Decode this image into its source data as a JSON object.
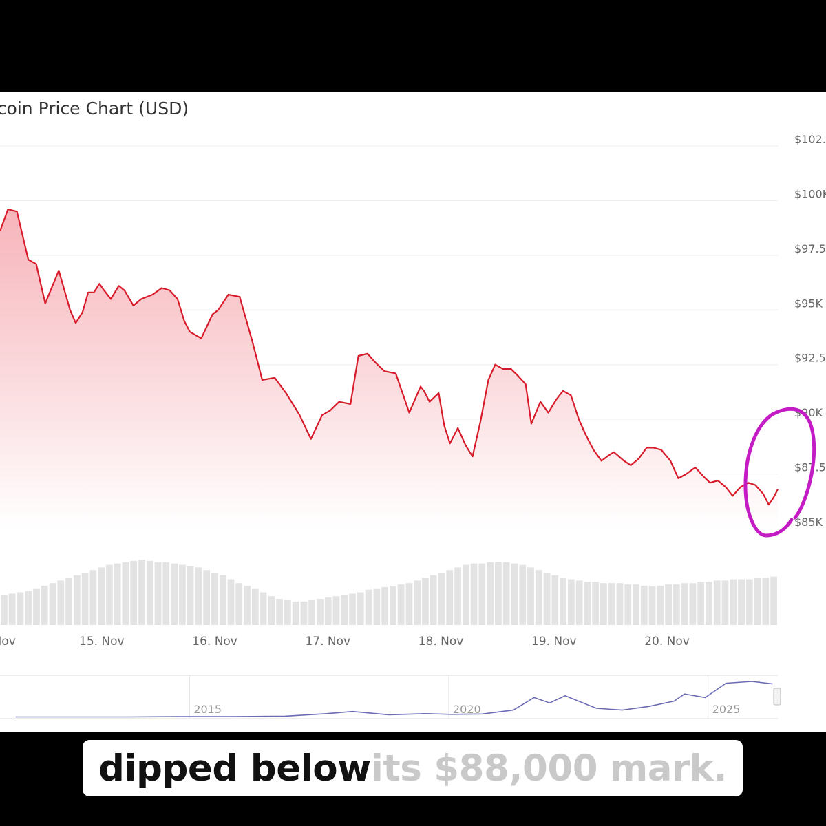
{
  "colors": {
    "price_line": "#d81b2a",
    "area_fill_top": "#f5a7ae",
    "volume_bar": "#e3e3e3",
    "navigator_line": "#6b6bb5",
    "annotation": "#c41cc4",
    "axis_text": "#666666",
    "grid": "#eeeeee"
  },
  "caption": {
    "spoken": "dipped below",
    "upcoming": " its $88,000 mark."
  },
  "chart_data": [
    {
      "type": "area",
      "title": "tcoin Price Chart (USD)",
      "x_ticks": [
        "Nov",
        "15. Nov",
        "16. Nov",
        "17. Nov",
        "18. Nov",
        "19. Nov",
        "20. Nov"
      ],
      "y_ticks": [
        "$102.",
        "$100K",
        "$97.5",
        "$95K",
        "$92.5",
        "$90K",
        "$87.5",
        "$85K"
      ],
      "y_tick_values": [
        102500,
        100000,
        97500,
        95000,
        92500,
        90000,
        87500,
        85000
      ],
      "ylim": [
        85000,
        102500
      ],
      "x_range_days": [
        14.1,
        20.98
      ],
      "grid": true,
      "series": [
        {
          "x": [
            14.1,
            14.17,
            14.25,
            14.35,
            14.42,
            14.5,
            14.62,
            14.72,
            14.77,
            14.83,
            14.88,
            14.93,
            14.98,
            15.02,
            15.08,
            15.15,
            15.2,
            15.28,
            15.35,
            15.45,
            15.53,
            15.6,
            15.67,
            15.73,
            15.78,
            15.88,
            15.98,
            16.03,
            16.12,
            16.22,
            16.33,
            16.42,
            16.53,
            16.63,
            16.75,
            16.85,
            16.95,
            17.02,
            17.1,
            17.2,
            17.27,
            17.35,
            17.42,
            17.5,
            17.6,
            17.72,
            17.82,
            17.85,
            17.9,
            17.98,
            18.03,
            18.08,
            18.15,
            18.22,
            18.28,
            18.35,
            18.42,
            18.48,
            18.55,
            18.62,
            18.68,
            18.75,
            18.8,
            18.88,
            18.95,
            19.02,
            19.08,
            19.15,
            19.22,
            19.28,
            19.35,
            19.42,
            19.47,
            19.53,
            19.62,
            19.68,
            19.75,
            19.82,
            19.88,
            19.95,
            20.03,
            20.1,
            20.17,
            20.25,
            20.32,
            20.38,
            20.45,
            20.52,
            20.58,
            20.65,
            20.72,
            20.78,
            20.85,
            20.9,
            20.94,
            20.98
          ],
          "y": [
            98600,
            99600,
            99500,
            97300,
            97100,
            95300,
            96800,
            95000,
            94400,
            94900,
            95800,
            95800,
            96200,
            95900,
            95500,
            96100,
            95900,
            95200,
            95500,
            95700,
            96000,
            95900,
            95500,
            94500,
            94000,
            93700,
            94800,
            95000,
            95700,
            95600,
            93600,
            91800,
            91900,
            91200,
            90200,
            89100,
            90200,
            90400,
            90800,
            90700,
            92900,
            93000,
            92600,
            92200,
            92100,
            90300,
            91500,
            91300,
            90800,
            91200,
            89700,
            88900,
            89600,
            88800,
            88300,
            89900,
            91800,
            92500,
            92300,
            92300,
            92000,
            91600,
            89800,
            90800,
            90300,
            90900,
            91300,
            91100,
            90000,
            89300,
            88600,
            88100,
            88300,
            88500,
            88100,
            87900,
            88200,
            88700,
            88700,
            88600,
            88100,
            87300,
            87500,
            87800,
            87400,
            87100,
            87200,
            86900,
            86500,
            86900,
            87100,
            87000,
            86600,
            86100,
            86400,
            86800
          ]
        }
      ],
      "volume": [
        23,
        24,
        25,
        26,
        28,
        30,
        32,
        34,
        36,
        38,
        40,
        42,
        44,
        46,
        47,
        48,
        49,
        50,
        49,
        48,
        48,
        47,
        46,
        45,
        44,
        42,
        40,
        38,
        35,
        32,
        30,
        28,
        25,
        22,
        20,
        19,
        18,
        18,
        19,
        20,
        21,
        22,
        23,
        24,
        25,
        27,
        28,
        29,
        30,
        31,
        32,
        34,
        36,
        38,
        40,
        42,
        44,
        46,
        47,
        47,
        48,
        48,
        48,
        47,
        46,
        44,
        42,
        40,
        38,
        36,
        35,
        34,
        33,
        33,
        32,
        32,
        32,
        31,
        31,
        30,
        30,
        30,
        31,
        31,
        32,
        32,
        33,
        33,
        34,
        34,
        35,
        35,
        35,
        36,
        36,
        37
      ]
    },
    {
      "type": "line",
      "x_ticks": [
        "2015",
        "2020",
        "2025"
      ],
      "series": [
        {
          "x": [
            2011.3,
            2012.5,
            2013.5,
            2014.5,
            2015.5,
            2016.5,
            2017.3,
            2017.8,
            2018.5,
            2019.2,
            2019.7,
            2020.3,
            2020.9,
            2021.3,
            2021.6,
            2021.9,
            2022.5,
            2023.0,
            2023.5,
            2024.0,
            2024.2,
            2024.6,
            2025.0,
            2025.5,
            2025.9
          ],
          "y": [
            0.01,
            0.01,
            0.01,
            0.02,
            0.02,
            0.03,
            0.1,
            0.16,
            0.07,
            0.1,
            0.08,
            0.09,
            0.2,
            0.55,
            0.4,
            0.6,
            0.25,
            0.2,
            0.3,
            0.45,
            0.65,
            0.55,
            0.95,
            1.0,
            0.93
          ]
        }
      ]
    }
  ]
}
